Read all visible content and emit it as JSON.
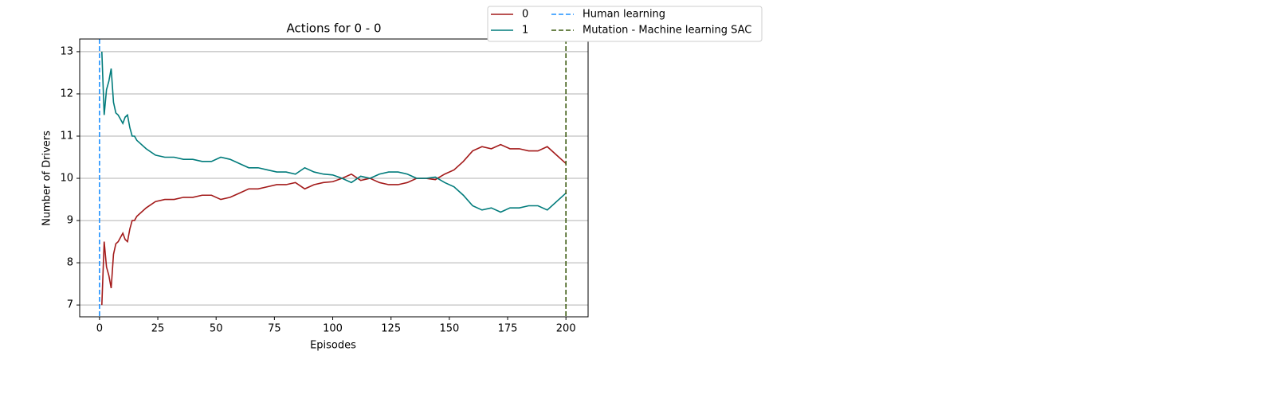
{
  "chart_data": {
    "type": "line",
    "title": "Actions for 0 - 0",
    "x_label": "Episodes",
    "y_label": "Number of Drivers",
    "x": [
      1,
      2,
      3,
      4,
      5,
      6,
      7,
      8,
      9,
      10,
      11,
      12,
      13,
      14,
      15,
      16,
      20,
      24,
      28,
      32,
      36,
      40,
      44,
      48,
      52,
      56,
      60,
      64,
      68,
      72,
      76,
      80,
      84,
      88,
      92,
      96,
      100,
      104,
      108,
      112,
      116,
      120,
      124,
      128,
      132,
      136,
      140,
      144,
      148,
      152,
      156,
      160,
      164,
      168,
      172,
      176,
      180,
      184,
      188,
      192,
      196,
      200
    ],
    "series": [
      {
        "name": "0",
        "color": "#a31a1a",
        "values": [
          7.0,
          8.5,
          7.9,
          7.7,
          7.4,
          8.2,
          8.45,
          8.5,
          8.6,
          8.7,
          8.55,
          8.5,
          8.8,
          9.0,
          9.0,
          9.1,
          9.3,
          9.45,
          9.5,
          9.5,
          9.55,
          9.55,
          9.6,
          9.6,
          9.5,
          9.55,
          9.65,
          9.75,
          9.75,
          9.8,
          9.85,
          9.85,
          9.9,
          9.75,
          9.85,
          9.9,
          9.92,
          10.0,
          10.1,
          9.95,
          10.0,
          9.9,
          9.85,
          9.85,
          9.9,
          10.0,
          10.0,
          9.97,
          10.1,
          10.2,
          10.4,
          10.65,
          10.75,
          10.7,
          10.8,
          10.7,
          10.7,
          10.65,
          10.65,
          10.75,
          10.55,
          10.35
        ]
      },
      {
        "name": "1",
        "color": "#007b7b",
        "values": [
          13.0,
          11.5,
          12.1,
          12.3,
          12.6,
          11.8,
          11.55,
          11.5,
          11.4,
          11.3,
          11.45,
          11.5,
          11.2,
          11.0,
          11.0,
          10.9,
          10.7,
          10.55,
          10.5,
          10.5,
          10.45,
          10.45,
          10.4,
          10.4,
          10.5,
          10.45,
          10.35,
          10.25,
          10.25,
          10.2,
          10.15,
          10.15,
          10.1,
          10.25,
          10.15,
          10.1,
          10.08,
          10.0,
          9.9,
          10.05,
          10.0,
          10.1,
          10.15,
          10.15,
          10.1,
          10.0,
          10.0,
          10.03,
          9.9,
          9.8,
          9.6,
          9.35,
          9.25,
          9.3,
          9.2,
          9.3,
          9.3,
          9.35,
          9.35,
          9.25,
          9.45,
          9.65
        ]
      }
    ],
    "vlines": [
      {
        "name": "Human learning",
        "x": 0,
        "color": "#1e90ff"
      },
      {
        "name": "Mutation - Machine learning SAC",
        "x": 200,
        "color": "#3a5a0f"
      }
    ],
    "xlim": [
      -8.5,
      209.5
    ],
    "xticks": [
      0,
      25,
      50,
      75,
      100,
      125,
      150,
      175,
      200
    ],
    "ylim": [
      6.72,
      13.3
    ],
    "yticks": [
      7,
      8,
      9,
      10,
      11,
      12,
      13
    ],
    "grid": "y"
  }
}
